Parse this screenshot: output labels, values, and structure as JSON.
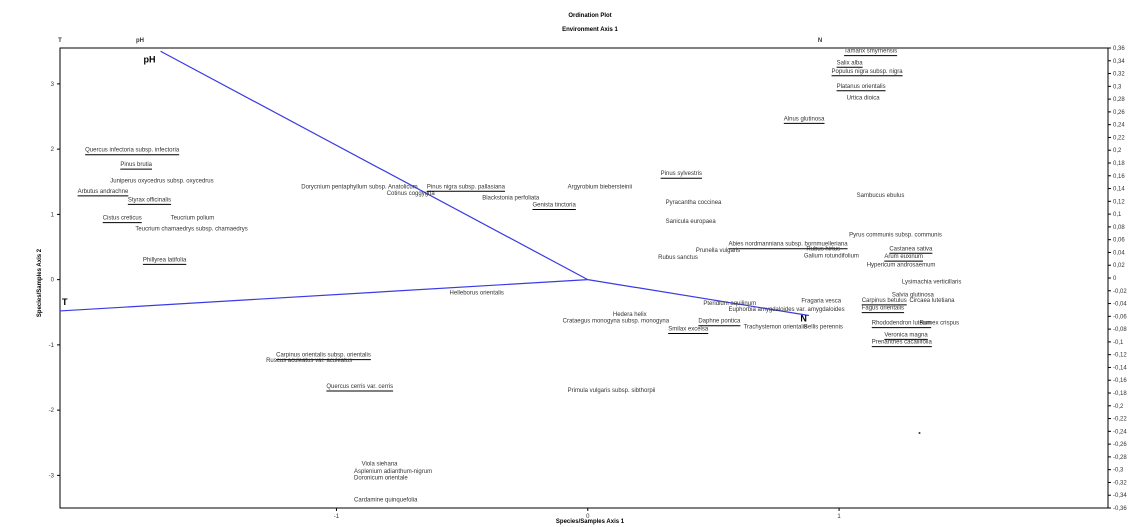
{
  "chart_data": {
    "type": "scatter",
    "title": "Ordination Plot",
    "subtitle": "Environment Axis 1",
    "xlabel": "Species/Samples Axis 1",
    "ylabel": "Species/Samples Axis 2",
    "xlim": [
      -2.1,
      2.07
    ],
    "ylim": [
      -3.5,
      3.55
    ],
    "x_ticks": [
      "-1",
      "0",
      "1"
    ],
    "y_ticks": [
      "-3",
      "-2",
      "-1",
      "0",
      "1",
      "2",
      "3"
    ],
    "right_axis_ticks": [
      "0,36",
      "0,34",
      "0,32",
      "0,3",
      "0,28",
      "0,26",
      "0,24",
      "0,22",
      "0,2",
      "0,18",
      "0,16",
      "0,14",
      "0,12",
      "0,1",
      "0,08",
      "0,06",
      "0,04",
      "0,02",
      "0",
      "-0,02",
      "-0,04",
      "-0,06",
      "-0,08",
      "-0,1",
      "-0,12",
      "-0,14",
      "-0,16",
      "-0,18",
      "-0,2",
      "-0,22",
      "-0,24",
      "-0,26",
      "-0,28",
      "-0,3",
      "-0,32",
      "-0,34",
      "-0,36"
    ],
    "top_axis_labels": [
      "T",
      "pH",
      "N"
    ],
    "vectors": [
      {
        "name": "pH",
        "x": -1.7,
        "y": 3.5
      },
      {
        "name": "T",
        "x": -2.1,
        "y": -0.48
      },
      {
        "name": "N",
        "x": 0.88,
        "y": -0.55
      }
    ],
    "species": [
      {
        "name": "Tamarix smyrnensis",
        "x": 1.02,
        "y": 3.48,
        "underline": true
      },
      {
        "name": "Salix alba",
        "x": 0.99,
        "y": 3.3,
        "underline": true
      },
      {
        "name": "Populus nigra subsp. nigra",
        "x": 0.97,
        "y": 3.17,
        "underline": true
      },
      {
        "name": "Platanus orientalis",
        "x": 0.99,
        "y": 2.94,
        "underline": true
      },
      {
        "name": "Urtica dioica",
        "x": 1.03,
        "y": 2.76,
        "underline": false
      },
      {
        "name": "Alnus glutinosa",
        "x": 0.78,
        "y": 2.44,
        "underline": true
      },
      {
        "name": "Quercus infectoria subsp. infectoria",
        "x": -2.0,
        "y": 1.96,
        "underline": true
      },
      {
        "name": "Pinus brutia",
        "x": -1.86,
        "y": 1.74,
        "underline": true
      },
      {
        "name": "Juniperus oxycedrus subsp. oxycedrus",
        "x": -1.9,
        "y": 1.49,
        "underline": false
      },
      {
        "name": "Arbutus andrachne",
        "x": -2.03,
        "y": 1.33,
        "underline": true
      },
      {
        "name": "Styrax officinalis",
        "x": -1.83,
        "y": 1.2,
        "underline": true
      },
      {
        "name": "Cistus creticus",
        "x": -1.93,
        "y": 0.92,
        "underline": true
      },
      {
        "name": "Teucrium polium",
        "x": -1.66,
        "y": 0.92,
        "underline": false
      },
      {
        "name": "Teucrium chamaedrys subsp. chamaedrys",
        "x": -1.8,
        "y": 0.75,
        "underline": false
      },
      {
        "name": "Phillyrea latifolia",
        "x": -1.77,
        "y": 0.28,
        "underline": true
      },
      {
        "name": "Dorycnium pentaphyllum subsp. Anatolicum",
        "x": -1.14,
        "y": 1.4,
        "underline": false
      },
      {
        "name": "Cotinus coggygria",
        "x": -0.8,
        "y": 1.3,
        "underline": false
      },
      {
        "name": "Pinus nigra subsp. pallasiana",
        "x": -0.64,
        "y": 1.4,
        "underline": true
      },
      {
        "name": "Blackstonia perfoliata",
        "x": -0.42,
        "y": 1.23,
        "underline": false
      },
      {
        "name": "Genista tinctoria",
        "x": -0.22,
        "y": 1.12,
        "underline": true
      },
      {
        "name": "Argyrobium biebersteinii",
        "x": -0.08,
        "y": 1.4,
        "underline": false
      },
      {
        "name": "Pinus sylvestris",
        "x": 0.29,
        "y": 1.6,
        "underline": true
      },
      {
        "name": "Pyracantha coccinea",
        "x": 0.31,
        "y": 1.16,
        "underline": false
      },
      {
        "name": "Sanicula europaea",
        "x": 0.31,
        "y": 0.87,
        "underline": false
      },
      {
        "name": "Abies nordmanniana subsp. bornmuelleriana",
        "x": 0.56,
        "y": 0.52,
        "underline": true
      },
      {
        "name": "Prunella vulgaris",
        "x": 0.43,
        "y": 0.42,
        "underline": false
      },
      {
        "name": "Rubus sanctus",
        "x": 0.28,
        "y": 0.32,
        "underline": false
      },
      {
        "name": "Sambucus ebulus",
        "x": 1.07,
        "y": 1.27,
        "underline": false
      },
      {
        "name": "Pyrus communis subsp. communis",
        "x": 1.04,
        "y": 0.66,
        "underline": false
      },
      {
        "name": "Rubus hirtus",
        "x": 0.87,
        "y": 0.45,
        "underline": false
      },
      {
        "name": "Castanea sativa",
        "x": 1.2,
        "y": 0.45,
        "underline": true
      },
      {
        "name": "Galium rotundifolium",
        "x": 0.86,
        "y": 0.34,
        "underline": false
      },
      {
        "name": "Arum euxinum",
        "x": 1.18,
        "y": 0.33,
        "underline": true
      },
      {
        "name": "Hypericum androsaemum",
        "x": 1.11,
        "y": 0.2,
        "underline": false
      },
      {
        "name": "Lysimachia verticillaris",
        "x": 1.25,
        "y": -0.06,
        "underline": false
      },
      {
        "name": "Salvia glutinosa",
        "x": 1.21,
        "y": -0.26,
        "underline": false
      },
      {
        "name": "Carpinus betulus",
        "x": 1.09,
        "y": -0.34,
        "underline": true
      },
      {
        "name": "Circaea lutetiana",
        "x": 1.28,
        "y": -0.34,
        "underline": false
      },
      {
        "name": "Fagus orientalis",
        "x": 1.09,
        "y": -0.46,
        "underline": true
      },
      {
        "name": "Rhododendron luteum",
        "x": 1.13,
        "y": -0.69,
        "underline": true
      },
      {
        "name": "Rumex crispus",
        "x": 1.32,
        "y": -0.69,
        "underline": false
      },
      {
        "name": "Veronica magna",
        "x": 1.18,
        "y": -0.87,
        "underline": true
      },
      {
        "name": "Prenanthes cacaliifolia",
        "x": 1.13,
        "y": -0.98,
        "underline": true
      },
      {
        "name": "Fragaria vesca",
        "x": 0.85,
        "y": -0.35,
        "underline": false
      },
      {
        "name": "Pteridium aquilinum",
        "x": 0.46,
        "y": -0.39,
        "underline": false
      },
      {
        "name": "Euphorbia amygdaloides var. amygdaloides",
        "x": 0.56,
        "y": -0.48,
        "underline": false
      },
      {
        "name": "Hedera helix",
        "x": 0.1,
        "y": -0.56,
        "underline": false
      },
      {
        "name": "Daphne pontica",
        "x": 0.44,
        "y": -0.66,
        "underline": true
      },
      {
        "name": "Crataegus monogyna subsp. monogyna",
        "x": -0.1,
        "y": -0.66,
        "underline": false
      },
      {
        "name": "Smilax excelsa",
        "x": 0.32,
        "y": -0.78,
        "underline": true
      },
      {
        "name": "Trachystemon orientalis",
        "x": 0.62,
        "y": -0.75,
        "underline": false
      },
      {
        "name": "Bellis perennis",
        "x": 0.86,
        "y": -0.75,
        "underline": false
      },
      {
        "name": "Helleborus orientalis",
        "x": -0.55,
        "y": -0.23,
        "underline": false
      },
      {
        "name": "Carpinus orientalis subsp. orientalis",
        "x": -1.24,
        "y": -1.18,
        "underline": true
      },
      {
        "name": "Ruscus aculeatus var. aculeatus",
        "x": -1.28,
        "y": -1.26,
        "underline": false
      },
      {
        "name": "Quercus cerris var. cerris",
        "x": -1.04,
        "y": -1.66,
        "underline": true
      },
      {
        "name": "Primula vulgaris subsp. sibthorpii",
        "x": -0.08,
        "y": -1.72,
        "underline": false
      },
      {
        "name": "Viola siehana",
        "x": -0.9,
        "y": -2.85,
        "underline": false
      },
      {
        "name": "Asplenium adianthum-nigrum",
        "x": -0.93,
        "y": -2.96,
        "underline": false
      },
      {
        "name": "Doronicum orientale",
        "x": -0.93,
        "y": -3.06,
        "underline": false
      },
      {
        "name": "Cardamine quinquefolia",
        "x": -0.93,
        "y": -3.4,
        "underline": false
      }
    ],
    "points": [
      {
        "x": 1.32,
        "y": -2.35
      }
    ],
    "grid": false,
    "colors": {
      "vector": "#3a3ae6",
      "title": "#2929d6",
      "text": "#333333",
      "axis": "#000000"
    }
  }
}
